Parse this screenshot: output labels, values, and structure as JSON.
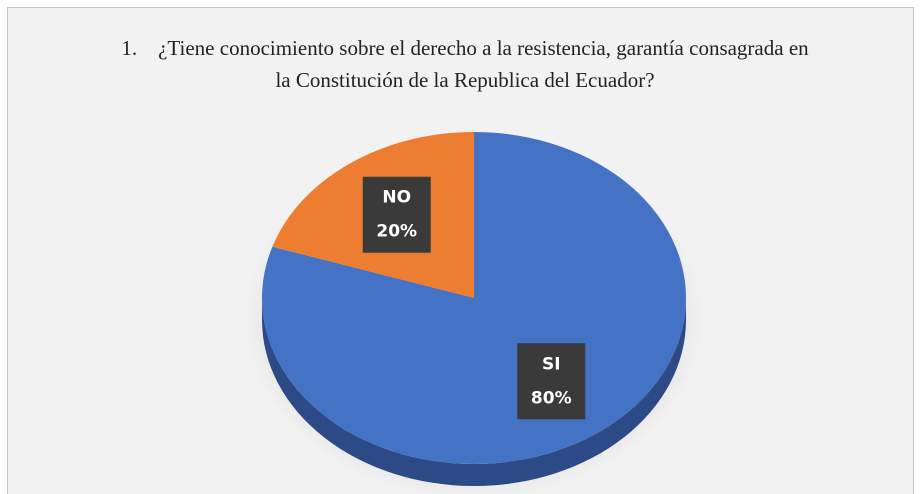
{
  "chart_data": {
    "type": "pie",
    "title": "1.    ¿Tiene conocimiento sobre el derecho a la resistencia, garantía consagrada en la Constitución de la Republica del Ecuador?",
    "categories": [
      "SI",
      "NO"
    ],
    "values": [
      80,
      20
    ],
    "value_labels": [
      "80%",
      "20%"
    ],
    "colors": [
      "#4472c4",
      "#ed7d31"
    ],
    "side_colors": [
      "#2c4a85",
      "#b05a20"
    ]
  }
}
